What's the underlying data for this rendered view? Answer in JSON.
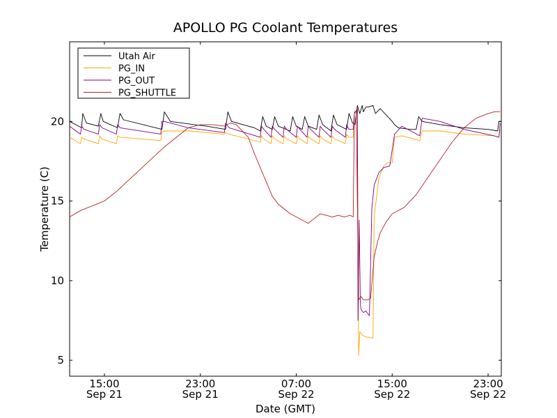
{
  "chart_data": {
    "type": "line",
    "title": "APOLLO PG Coolant Temperatures",
    "xlabel": "Date (GMT)",
    "ylabel": "Temperature (C)",
    "x_units": "hours since Sep 21 00:00 GMT",
    "xlim": [
      12.1,
      48.1
    ],
    "ylim": [
      4,
      25
    ],
    "x_ticks": [
      {
        "value": 15,
        "time": "15:00",
        "date": "Sep 21"
      },
      {
        "value": 23,
        "time": "23:00",
        "date": "Sep 21"
      },
      {
        "value": 31,
        "time": "07:00",
        "date": "Sep 22"
      },
      {
        "value": 39,
        "time": "15:00",
        "date": "Sep 22"
      },
      {
        "value": 47,
        "time": "23:00",
        "date": "Sep 22"
      }
    ],
    "y_ticks": [
      {
        "value": 5,
        "label": "5"
      },
      {
        "value": 10,
        "label": "10"
      },
      {
        "value": 15,
        "label": "15"
      },
      {
        "value": 20,
        "label": "20"
      }
    ],
    "grid": false,
    "legend_position": "top-left",
    "series": [
      {
        "name": "Utah Air",
        "color": "#000000",
        "x": [
          12.1,
          13.1,
          13.2,
          13.5,
          14.5,
          14.7,
          14.9,
          16.1,
          16.3,
          16.6,
          19.8,
          20.0,
          20.5,
          21.5,
          22.5,
          23.5,
          25.1,
          25.3,
          25.6,
          27.5,
          28.0,
          28.2,
          28.5,
          29.0,
          29.2,
          29.5,
          30.5,
          30.7,
          31.0,
          31.5,
          31.7,
          32.0,
          32.7,
          32.9,
          33.2,
          33.9,
          34.1,
          34.4,
          35.2,
          35.4,
          35.7,
          35.9,
          36.1,
          36.3,
          36.5,
          36.6,
          36.8,
          37.0,
          37.4,
          37.6,
          38.0,
          38.5,
          39.0,
          39.2,
          39.5,
          40.5,
          41.0,
          41.2,
          41.5,
          43.0,
          45.0,
          47.0,
          47.8,
          47.9,
          48.1
        ],
        "y": [
          20.0,
          19.6,
          20.5,
          19.9,
          19.7,
          20.5,
          20.0,
          19.6,
          20.5,
          20.1,
          19.5,
          20.6,
          20.0,
          19.9,
          19.8,
          19.7,
          19.5,
          20.6,
          20.0,
          19.6,
          19.4,
          20.3,
          19.7,
          19.5,
          20.3,
          19.7,
          19.4,
          20.3,
          19.7,
          19.5,
          20.3,
          19.7,
          19.5,
          20.4,
          19.8,
          19.4,
          20.4,
          19.8,
          19.5,
          20.5,
          19.9,
          19.8,
          21.0,
          20.5,
          21.0,
          20.6,
          20.9,
          20.9,
          21.0,
          20.5,
          20.8,
          20.4,
          20.0,
          19.8,
          19.6,
          19.5,
          19.5,
          20.3,
          20.0,
          19.8,
          19.6,
          19.5,
          19.4,
          20.0,
          20.0
        ]
      },
      {
        "name": "PG_IN",
        "color": "#FFA500",
        "x": [
          12.1,
          13.0,
          13.1,
          13.3,
          14.5,
          14.6,
          14.8,
          16.0,
          16.1,
          16.3,
          19.7,
          19.8,
          20.0,
          22.0,
          25.0,
          25.1,
          25.4,
          28.0,
          28.1,
          28.3,
          28.9,
          29.0,
          29.2,
          29.9,
          30.0,
          30.2,
          31.0,
          31.1,
          31.3,
          31.9,
          32.0,
          32.2,
          32.9,
          33.0,
          33.2,
          33.9,
          34.0,
          34.2,
          35.1,
          35.2,
          35.4,
          35.6,
          35.75,
          35.85,
          36.1,
          36.2,
          36.3,
          36.5,
          36.7,
          37.2,
          37.4,
          37.5,
          37.9,
          38.3,
          38.6,
          38.8,
          39.0,
          39.2,
          39.8,
          41.3,
          41.5,
          43.0,
          45.0,
          47.5,
          47.9,
          48.0
        ],
        "y": [
          19.0,
          18.6,
          19.0,
          18.9,
          18.6,
          19.1,
          18.9,
          18.6,
          19.1,
          19.0,
          18.8,
          19.3,
          19.4,
          19.4,
          19.2,
          19.3,
          19.2,
          18.7,
          19.1,
          18.9,
          18.6,
          19.1,
          18.9,
          18.6,
          19.1,
          18.9,
          18.6,
          19.1,
          18.9,
          18.6,
          19.1,
          18.9,
          18.6,
          19.1,
          18.9,
          18.6,
          19.1,
          18.9,
          18.6,
          19.2,
          19.0,
          19.0,
          19.0,
          20.5,
          20.8,
          5.3,
          6.8,
          6.6,
          6.5,
          6.4,
          6.4,
          14.0,
          16.5,
          17.2,
          17.4,
          17.4,
          17.4,
          19.0,
          19.1,
          18.8,
          19.4,
          19.4,
          19.2,
          19.1,
          19.0,
          19.5
        ]
      },
      {
        "name": "PG_OUT",
        "color": "#800080",
        "x": [
          12.1,
          13.0,
          13.1,
          13.3,
          14.5,
          14.6,
          14.8,
          16.0,
          16.1,
          16.3,
          19.7,
          19.8,
          20.0,
          22.0,
          25.0,
          25.1,
          25.4,
          28.0,
          28.1,
          28.3,
          28.9,
          29.0,
          29.2,
          29.9,
          30.0,
          30.2,
          31.0,
          31.1,
          31.3,
          31.9,
          32.0,
          32.2,
          32.9,
          33.0,
          33.2,
          33.9,
          34.0,
          34.2,
          35.1,
          35.2,
          35.4,
          35.6,
          35.75,
          35.85,
          36.1,
          36.15,
          36.25,
          36.35,
          36.4,
          36.6,
          36.8,
          37.0,
          37.1,
          37.3,
          37.5,
          37.9,
          38.3,
          38.8,
          39.2,
          39.8,
          41.3,
          41.5,
          43.0,
          45.0,
          47.5,
          47.9,
          48.0
        ],
        "y": [
          19.7,
          19.2,
          19.7,
          19.5,
          19.2,
          19.8,
          19.6,
          19.2,
          19.8,
          19.6,
          19.2,
          20.0,
          20.0,
          19.6,
          19.3,
          19.9,
          19.6,
          19.0,
          19.7,
          19.5,
          19.0,
          19.7,
          19.5,
          19.0,
          19.7,
          19.5,
          19.0,
          19.7,
          19.5,
          19.0,
          19.7,
          19.5,
          19.0,
          19.7,
          19.5,
          19.0,
          19.7,
          19.5,
          19.0,
          19.8,
          19.5,
          19.5,
          19.5,
          20.5,
          20.8,
          7.5,
          13.8,
          8.5,
          8.2,
          8.0,
          8.1,
          7.9,
          7.8,
          14.5,
          16.0,
          16.8,
          17.1,
          17.2,
          19.2,
          19.7,
          19.1,
          20.2,
          20.0,
          19.5,
          19.1,
          19.0,
          19.9
        ]
      },
      {
        "name": "PG_SHUTTLE",
        "color": "#B22222",
        "x": [
          12.1,
          13.0,
          14.0,
          15.0,
          16.0,
          17.0,
          18.0,
          19.0,
          20.0,
          21.0,
          22.0,
          23.0,
          24.0,
          25.0,
          25.5,
          26.0,
          27.0,
          27.5,
          28.0,
          28.5,
          29.0,
          29.5,
          30.0,
          30.5,
          31.0,
          31.5,
          32.0,
          32.5,
          33.0,
          33.5,
          34.0,
          34.5,
          35.0,
          35.5,
          35.75,
          35.85,
          36.0,
          36.2,
          36.4,
          36.6,
          37.0,
          37.2,
          37.5,
          37.8,
          38.0,
          38.5,
          39.0,
          40.0,
          41.0,
          42.0,
          43.0,
          44.0,
          45.0,
          46.0,
          47.0,
          47.5,
          48.0
        ],
        "y": [
          14.0,
          14.4,
          14.7,
          15.0,
          15.6,
          16.3,
          17.0,
          17.7,
          18.4,
          19.0,
          19.6,
          19.8,
          19.8,
          19.7,
          19.9,
          19.8,
          19.0,
          18.0,
          17.1,
          16.2,
          15.3,
          14.8,
          14.5,
          14.2,
          14.0,
          13.8,
          13.6,
          13.9,
          14.2,
          14.1,
          14.0,
          14.1,
          14.0,
          14.1,
          14.0,
          20.6,
          20.6,
          8.8,
          9.0,
          8.8,
          8.8,
          8.9,
          11.5,
          12.5,
          13.0,
          13.7,
          14.2,
          14.6,
          15.4,
          16.5,
          17.6,
          18.7,
          19.6,
          20.2,
          20.5,
          20.6,
          20.6
        ]
      }
    ]
  }
}
